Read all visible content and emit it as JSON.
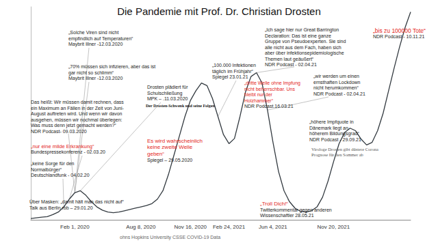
{
  "chart_data": {
    "type": "line",
    "title": "Die Pandemie mit Prof. Dr. Christian Drosten",
    "source": "ohns Hopkins University CSSE COVID-19 Data",
    "color": "#333a40",
    "grid": false,
    "tick_labels": "x",
    "ylim": [
      0,
      330
    ],
    "yticks": [],
    "categories": [
      null,
      null,
      null,
      null,
      null,
      null,
      null,
      null,
      "Feb 1, 2020",
      null,
      null,
      null,
      null,
      null,
      null,
      null,
      null,
      null,
      null,
      null,
      "Aug 8, 2020",
      null,
      null,
      null,
      null,
      null,
      null,
      null,
      null,
      "Nov 16, 2020",
      null,
      null,
      null,
      null,
      null,
      null,
      "Feb 24, 2021",
      null,
      null,
      null,
      null,
      null,
      null,
      null,
      "Jun 4, 2021",
      null,
      null,
      null,
      null,
      null,
      null,
      null,
      null,
      null,
      null,
      "Nov 20, 2021",
      null,
      null,
      null,
      null,
      null,
      null,
      null,
      null,
      null,
      null,
      null,
      null,
      null,
      null
    ],
    "values": [
      2,
      3,
      4,
      5,
      8,
      12,
      20,
      32,
      42,
      45,
      38,
      28,
      20,
      15,
      12,
      11,
      12,
      14,
      16,
      18,
      20,
      22,
      25,
      32,
      45,
      70,
      100,
      130,
      160,
      185,
      200,
      212,
      208,
      188,
      160,
      132,
      118,
      126,
      160,
      198,
      222,
      228,
      212,
      170,
      120,
      75,
      45,
      28,
      18,
      13,
      12,
      14,
      20,
      35,
      60,
      90,
      118,
      135,
      142,
      138,
      125,
      116,
      120,
      138,
      165,
      200,
      235,
      268,
      298,
      322
    ],
    "annotations": [
      {
        "quote": [
          "Über Masken: „damit hält man das nicht auf“"
        ],
        "source": [
          "Talk aus Berlin rbb – 29.01.20"
        ],
        "color": "#1a1a1a"
      },
      {
        "quote": [
          "„keine Sorge für den",
          "Normalbürger“"
        ],
        "source": [
          "Deutschlandfunk - 04.02.20"
        ],
        "color": "#1a1a1a"
      },
      {
        "quote": [
          "„nur eine milde Erkrankung“"
        ],
        "source": [
          "Bundespressekonferenz - 02.03.20"
        ],
        "color": "#e3241b"
      },
      {
        "quote": [
          "Das heißt: Wir müssen damit rechnen, dass",
          "ein Maximum an Fällen in der Zeit von Juni-",
          "August auftreten wird. Und wenn wir davon",
          "ausgehen, müssen wir nochmal überlegen:",
          "Was muss denn jetzt gemacht werden?“"
        ],
        "source": [
          "NDR Podcast- 09.03.2020"
        ],
        "color": "#1a1a1a"
      },
      {
        "quote": [
          "„70% müssen sich infizieren, aber das ist",
          "gar nicht so schlimm“"
        ],
        "source": [
          "Maybrit Illner -12.03.2020"
        ],
        "color": "#1a1a1a"
      },
      {
        "quote": [
          "„Solche Viren sind nicht",
          "empfindlich auf Temperaturen“"
        ],
        "source": [
          "Maybrit Illner -12.03.2020"
        ],
        "color": "#1a1a1a"
      },
      {
        "quote": [
          "Drosten plädiert für",
          "Schulschließung"
        ],
        "source": [
          "MPK – .11.03.2020"
        ],
        "color": "#1a1a1a"
      },
      {
        "type": "clipping",
        "quote": [
          "Der Drosten-Schwenk und seine Folgen"
        ],
        "source": [],
        "color": "#1a1a1a"
      },
      {
        "quote": [
          "Es wird wahrscheinlich",
          "keine zweite Welle",
          "geben“"
        ],
        "source": [
          "Spiegel – 29.05.2020"
        ],
        "color": "#e3241b"
      },
      {
        "quote": [
          "„100.000 Infektionen",
          "täglich im Frühjahr“"
        ],
        "source": [
          "Spiegel 23.01.21"
        ],
        "color": "#1a1a1a"
      },
      {
        "quote": [
          "„dritte Welle ohne Impfung",
          "nicht beherrschbar. Uns",
          "bleibt nur der",
          "Holzhammer“"
        ],
        "source": [
          "NDR Podcast.16.03.21"
        ],
        "color": "#e3241b"
      },
      {
        "quote": [
          "„Ich sage hier nur Great Barrington",
          "Declaration: Das ist eine ganze",
          "Gruppe von Pseudoexperten. Sie sind",
          "alle nicht aus dem Fach, haben sich",
          "aber über infektionsepidemiologische",
          "Themen laut geäußert“"
        ],
        "source": [
          "NDR Podcast - 02.04.21"
        ],
        "color": "#1a1a1a"
      },
      {
        "quote": [
          "„bis zu 100000 Tote“"
        ],
        "source": [
          "NDR Podcast - 10.11.21"
        ],
        "color": "#e3241b"
      },
      {
        "quote": [
          "„wir werden um einen",
          "ernsthaften Lockdown",
          "nicht herumkommen“"
        ],
        "source": [
          "NDR Podcast - 02.04.21"
        ],
        "color": "#1a1a1a"
      },
      {
        "quote": [
          "„höhere Impfquote in",
          "Dänemark liegt an",
          "höherem Bildungsgrad“"
        ],
        "source": [
          "NDR Podcast - 29.09.21"
        ],
        "color": "#1a1a1a"
      },
      {
        "type": "clipping",
        "quote": [
          "Virologe Drosten gibt düstere Corona",
          "Prognose für den Sommer ab"
        ],
        "source": [],
        "color": "#555555"
      },
      {
        "quote": [
          "„Troll Dich!“"
        ],
        "source": [
          "Twitterkommentar gegen anderen",
          "Wissenschaftler 28.05.21"
        ],
        "color": "#e3241b"
      }
    ]
  }
}
